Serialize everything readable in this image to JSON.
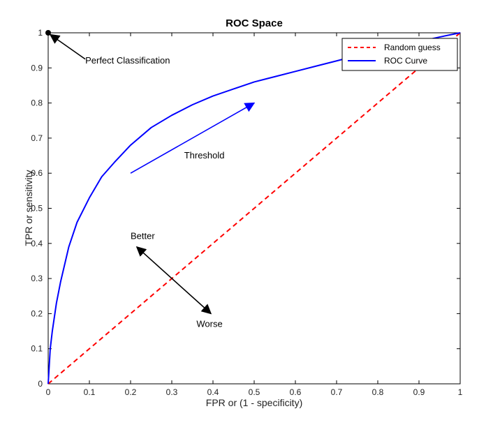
{
  "chart_data": {
    "type": "line",
    "title": "ROC Space",
    "xlabel": "FPR or (1 - specificity)",
    "ylabel": "TPR or sensitivity",
    "xlim": [
      0,
      1
    ],
    "ylim": [
      0,
      1
    ],
    "xticks": [
      0,
      0.1,
      0.2,
      0.3,
      0.4,
      0.5,
      0.6,
      0.7,
      0.8,
      0.9,
      1
    ],
    "yticks": [
      0,
      0.1,
      0.2,
      0.3,
      0.4,
      0.5,
      0.6,
      0.7,
      0.8,
      0.9,
      1
    ],
    "xtick_labels": [
      "0",
      "0.1",
      "0.2",
      "0.3",
      "0.4",
      "0.5",
      "0.6",
      "0.7",
      "0.8",
      "0.9",
      "1"
    ],
    "ytick_labels": [
      "0",
      "0.1",
      "0.2",
      "0.3",
      "0.4",
      "0.5",
      "0.6",
      "0.7",
      "0.8",
      "0.9",
      "1"
    ],
    "grid": false,
    "legend_position": "top-right",
    "series": [
      {
        "name": "Random guess",
        "color": "#ff0000",
        "style": "dashed",
        "x": [
          0,
          1
        ],
        "y": [
          0,
          1
        ]
      },
      {
        "name": "ROC Curve",
        "color": "#0000ff",
        "style": "solid",
        "x": [
          0,
          0.005,
          0.01,
          0.02,
          0.03,
          0.05,
          0.07,
          0.1,
          0.13,
          0.16,
          0.2,
          0.25,
          0.3,
          0.35,
          0.4,
          0.45,
          0.5,
          0.55,
          0.6,
          0.65,
          0.7,
          0.75,
          0.8,
          0.85,
          0.9,
          0.95,
          1
        ],
        "y": [
          0,
          0.1,
          0.15,
          0.23,
          0.29,
          0.39,
          0.46,
          0.53,
          0.59,
          0.63,
          0.68,
          0.73,
          0.765,
          0.795,
          0.82,
          0.84,
          0.86,
          0.875,
          0.89,
          0.905,
          0.92,
          0.935,
          0.95,
          0.963,
          0.975,
          0.988,
          1
        ]
      }
    ],
    "annotations": [
      {
        "text": "Perfect Classification",
        "x": 0.09,
        "y": 0.92,
        "color": "#000000"
      },
      {
        "text": "Threshold",
        "x": 0.33,
        "y": 0.65,
        "color": "#0000ff"
      },
      {
        "text": "Better",
        "x": 0.2,
        "y": 0.42,
        "color": "#000000"
      },
      {
        "text": "Worse",
        "x": 0.36,
        "y": 0.17,
        "color": "#000000"
      }
    ],
    "marker": {
      "label": "perfect-point",
      "x": 0,
      "y": 1,
      "color": "#000000"
    },
    "arrows": [
      {
        "name": "perfect-classification-arrow",
        "color": "#000000",
        "from": [
          0.09,
          0.925
        ],
        "to": [
          0.005,
          0.995
        ],
        "heads": "end"
      },
      {
        "name": "threshold-arrow",
        "color": "#0000ff",
        "from": [
          0.2,
          0.6
        ],
        "to": [
          0.5,
          0.8
        ],
        "heads": "end"
      },
      {
        "name": "better-worse-arrow",
        "color": "#000000",
        "from": [
          0.215,
          0.39
        ],
        "to": [
          0.395,
          0.2
        ],
        "heads": "both"
      }
    ]
  }
}
